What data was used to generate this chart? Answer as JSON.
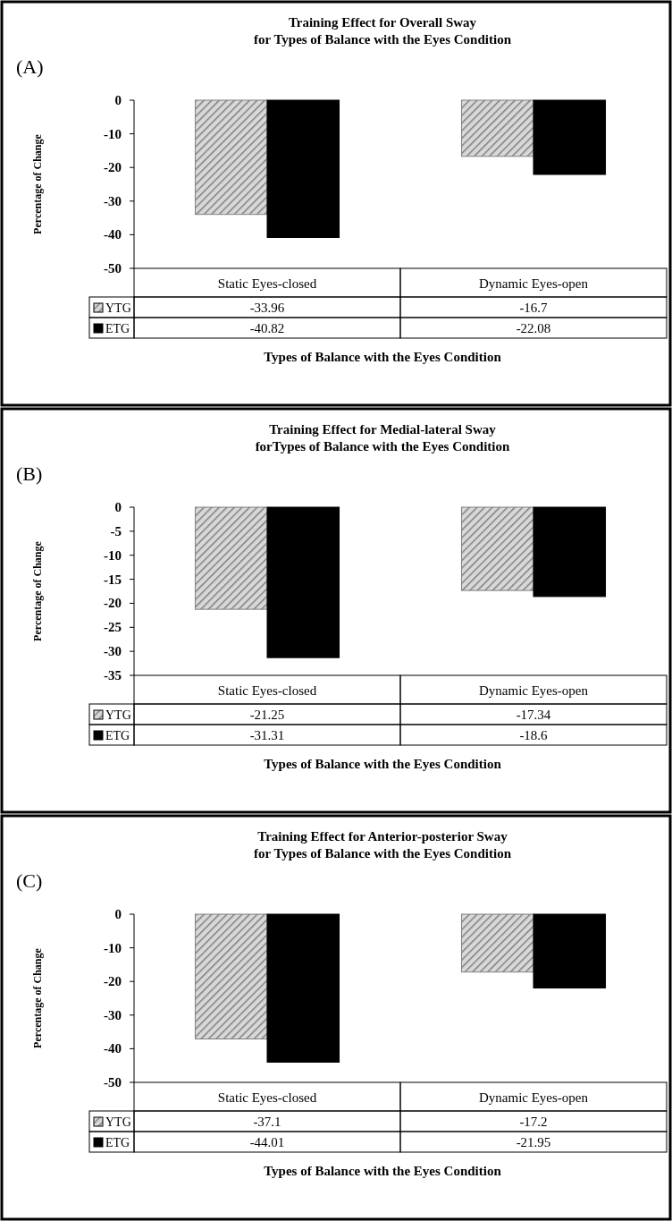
{
  "chart_data": [
    {
      "type": "bar",
      "title": "Training Effect for Overall Sway\nfor Types of Balance with the Eyes Condition",
      "ylabel": "Percentage of Change",
      "xlabel": "Types of Balance with the Eyes Condition",
      "annotations": [
        "(A)"
      ],
      "categories": [
        "Static Eyes-closed",
        "Dynamic Eyes-open"
      ],
      "series": [
        {
          "name": "YTG",
          "color": "#808080",
          "values": [
            -33.96,
            -16.7
          ]
        },
        {
          "name": "ETG",
          "color": "#000000",
          "values": [
            -40.82,
            -22.08
          ]
        }
      ],
      "ylim": [
        -50,
        0
      ],
      "yticks": [
        -50,
        -40,
        -30,
        -20,
        -10,
        0
      ],
      "data_labels": true,
      "legend": "bottom"
    },
    {
      "type": "bar",
      "title": "Training Effect for Medial-lateral Sway\nforTypes of Balance with the Eyes Condition",
      "ylabel": "Percentage of Change",
      "xlabel": "Types of Balance with the Eyes Condition",
      "annotations": [
        "(B)"
      ],
      "categories": [
        "Static Eyes-closed",
        "Dynamic Eyes-open"
      ],
      "series": [
        {
          "name": "YTG",
          "color": "#808080",
          "values": [
            -21.25,
            -17.34
          ]
        },
        {
          "name": "ETG",
          "color": "#000000",
          "values": [
            -31.31,
            -18.6
          ]
        }
      ],
      "ylim": [
        -35,
        0
      ],
      "yticks": [
        -35,
        -30,
        -25,
        -20,
        -15,
        -10,
        -5,
        0
      ],
      "data_labels": true,
      "legend": "bottom"
    },
    {
      "type": "bar",
      "title": "Training Effect for Anterior-posterior Sway\nfor Types of Balance with the Eyes Condition",
      "ylabel": "Percentage of Change",
      "xlabel": "Types of Balance with the Eyes Condition",
      "annotations": [
        "(C)"
      ],
      "categories": [
        "Static Eyes-closed",
        "Dynamic Eyes-open"
      ],
      "series": [
        {
          "name": "YTG",
          "color": "#808080",
          "values": [
            -37.1,
            -17.2
          ]
        },
        {
          "name": "ETG",
          "color": "#000000",
          "values": [
            -44.01,
            -21.95
          ]
        }
      ],
      "ylim": [
        -50,
        0
      ],
      "yticks": [
        -50,
        -40,
        -30,
        -20,
        -10,
        0
      ],
      "data_labels": true,
      "legend": "bottom"
    }
  ]
}
